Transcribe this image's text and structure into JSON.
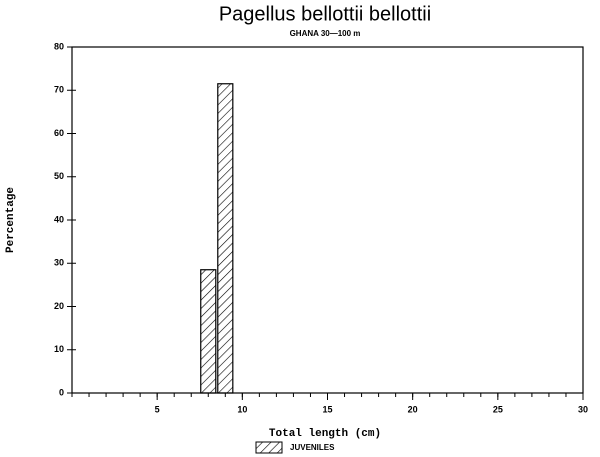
{
  "chart_data": {
    "type": "histogram",
    "title": "Pagellus bellottii bellottii",
    "subtitle": "GHANA 30—100 m",
    "x_label": "Total length (cm)",
    "y_label": "Percentage",
    "bins": [
      7.5,
      8.5,
      9.5
    ],
    "series": [
      {
        "name": "JUVENILES",
        "color": "#000000",
        "values": [
          28.5,
          71.5
        ]
      }
    ],
    "xlim": [
      0,
      30
    ],
    "xticks": [
      5,
      10,
      15,
      20,
      25,
      30
    ],
    "ylim": [
      0,
      80
    ],
    "yticks": [
      0,
      10,
      20,
      30,
      40,
      50,
      60,
      70,
      80
    ]
  }
}
